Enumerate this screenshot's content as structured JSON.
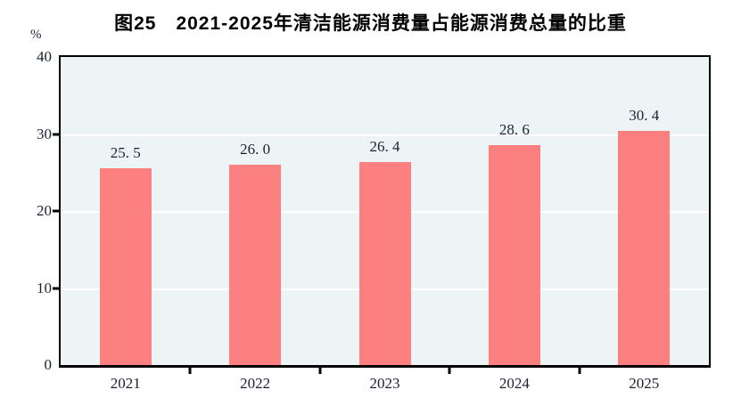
{
  "title": {
    "prefix": "图25",
    "text": "2021-2025年清洁能源消费量占能源消费总量的比重"
  },
  "unit_label": "%",
  "colors": {
    "bar": "#fc8080",
    "plot_bg": "#edf4f6",
    "grid": "#ffffff",
    "axis": "#000000",
    "text": "#1a2230"
  },
  "chart_data": {
    "type": "bar",
    "title": "图25 2021-2025年清洁能源消费量占能源消费总量的比重",
    "categories": [
      "2021",
      "2022",
      "2023",
      "2024",
      "2025"
    ],
    "values": [
      25.5,
      26.0,
      26.4,
      28.6,
      30.4
    ],
    "value_labels": [
      "25. 5",
      "26. 0",
      "26. 4",
      "28. 6",
      "30. 4"
    ],
    "xlabel": "",
    "ylabel": "%",
    "ylim": [
      0,
      40
    ],
    "yticks": [
      0,
      10,
      20,
      30,
      40
    ],
    "gridlines_at": [
      10,
      20,
      30
    ],
    "grid": "horizontal",
    "legend": "none",
    "bar_color": "#fc8080"
  }
}
